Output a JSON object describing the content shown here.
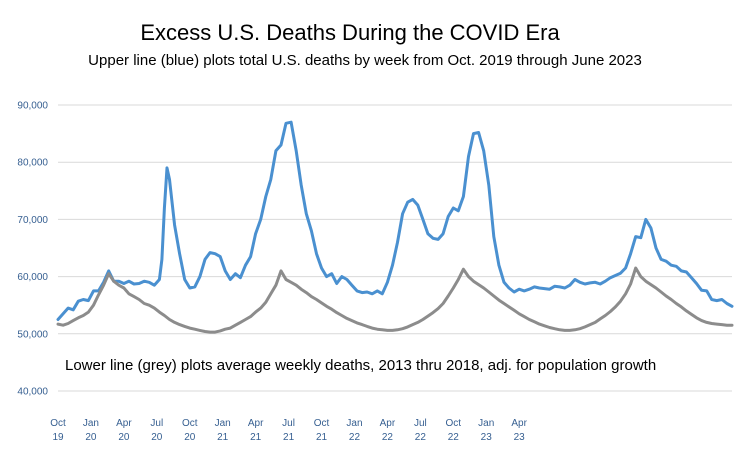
{
  "chart_data": {
    "type": "line",
    "title": "Excess U.S. Deaths During the COVID Era",
    "subtitle": "Upper line (blue) plots total U.S. deaths by week from Oct. 2019 through June 2023",
    "annotation": "Lower line (grey) plots average weekly deaths, 2013 thru 2018, adj. for population growth",
    "ylim": [
      40000,
      90000
    ],
    "y_ticks": [
      {
        "value": 40000,
        "label": "40,000"
      },
      {
        "value": 50000,
        "label": "50,000"
      },
      {
        "value": 60000,
        "label": "60,000"
      },
      {
        "value": 70000,
        "label": "70,000"
      },
      {
        "value": 80000,
        "label": "80,000"
      },
      {
        "value": 90000,
        "label": "90,000"
      }
    ],
    "x_ticks": [
      {
        "week": 0,
        "month": "Oct",
        "year": "19"
      },
      {
        "week": 13,
        "month": "Jan",
        "year": "20"
      },
      {
        "week": 26,
        "month": "Apr",
        "year": "20"
      },
      {
        "week": 39,
        "month": "Jul",
        "year": "20"
      },
      {
        "week": 52,
        "month": "Oct",
        "year": "20"
      },
      {
        "week": 65,
        "month": "Jan",
        "year": "21"
      },
      {
        "week": 78,
        "month": "Apr",
        "year": "21"
      },
      {
        "week": 91,
        "month": "Jul",
        "year": "21"
      },
      {
        "week": 104,
        "month": "Oct",
        "year": "21"
      },
      {
        "week": 117,
        "month": "Jan",
        "year": "22"
      },
      {
        "week": 130,
        "month": "Apr",
        "year": "22"
      },
      {
        "week": 143,
        "month": "Jul",
        "year": "22"
      },
      {
        "week": 156,
        "month": "Oct",
        "year": "22"
      },
      {
        "week": 169,
        "month": "Jan",
        "year": "23"
      },
      {
        "week": 182,
        "month": "Apr",
        "year": "23"
      }
    ],
    "grid": true,
    "series": [
      {
        "color": "#4a90d0",
        "points": [
          [
            0,
            52500
          ],
          [
            2,
            53500
          ],
          [
            4,
            54500
          ],
          [
            6,
            54200
          ],
          [
            8,
            55700
          ],
          [
            10,
            56000
          ],
          [
            12,
            55800
          ],
          [
            14,
            57500
          ],
          [
            16,
            57500
          ],
          [
            18,
            59000
          ],
          [
            20,
            61000
          ],
          [
            22,
            59200
          ],
          [
            24,
            59200
          ],
          [
            26,
            58800
          ],
          [
            28,
            59200
          ],
          [
            30,
            58700
          ],
          [
            32,
            58800
          ],
          [
            34,
            59200
          ],
          [
            36,
            59000
          ],
          [
            38,
            58500
          ],
          [
            40,
            59500
          ],
          [
            41,
            63000
          ],
          [
            42,
            72000
          ],
          [
            43,
            79000
          ],
          [
            44,
            77000
          ],
          [
            46,
            69000
          ],
          [
            48,
            64000
          ],
          [
            50,
            59500
          ],
          [
            52,
            58000
          ],
          [
            54,
            58200
          ],
          [
            56,
            60000
          ],
          [
            58,
            63000
          ],
          [
            60,
            64200
          ],
          [
            62,
            64000
          ],
          [
            64,
            63500
          ],
          [
            66,
            61000
          ],
          [
            68,
            59500
          ],
          [
            70,
            60500
          ],
          [
            72,
            59800
          ],
          [
            74,
            62000
          ],
          [
            76,
            63500
          ],
          [
            78,
            67500
          ],
          [
            80,
            70000
          ],
          [
            82,
            74000
          ],
          [
            84,
            77000
          ],
          [
            86,
            82000
          ],
          [
            88,
            83000
          ],
          [
            90,
            86800
          ],
          [
            92,
            87000
          ],
          [
            94,
            82000
          ],
          [
            96,
            76000
          ],
          [
            98,
            71000
          ],
          [
            100,
            68000
          ],
          [
            102,
            64000
          ],
          [
            104,
            61500
          ],
          [
            106,
            60000
          ],
          [
            108,
            60500
          ],
          [
            110,
            58800
          ],
          [
            112,
            60000
          ],
          [
            114,
            59500
          ],
          [
            116,
            58500
          ],
          [
            118,
            57500
          ],
          [
            120,
            57200
          ],
          [
            122,
            57300
          ],
          [
            124,
            57000
          ],
          [
            126,
            57500
          ],
          [
            128,
            57000
          ],
          [
            130,
            59000
          ],
          [
            132,
            62000
          ],
          [
            134,
            66000
          ],
          [
            136,
            71000
          ],
          [
            138,
            73000
          ],
          [
            140,
            73500
          ],
          [
            142,
            72500
          ],
          [
            144,
            70000
          ],
          [
            146,
            67500
          ],
          [
            148,
            66700
          ],
          [
            150,
            66500
          ],
          [
            152,
            67500
          ],
          [
            154,
            70500
          ],
          [
            156,
            72000
          ],
          [
            158,
            71500
          ],
          [
            160,
            74000
          ],
          [
            162,
            81000
          ],
          [
            164,
            85000
          ],
          [
            166,
            85200
          ],
          [
            168,
            82000
          ],
          [
            170,
            76000
          ],
          [
            172,
            67000
          ],
          [
            174,
            62000
          ],
          [
            176,
            59000
          ],
          [
            178,
            58000
          ],
          [
            180,
            57300
          ],
          [
            182,
            57800
          ],
          [
            184,
            57500
          ],
          [
            186,
            57800
          ],
          [
            188,
            58200
          ],
          [
            190,
            58000
          ],
          [
            192,
            57900
          ],
          [
            194,
            57800
          ],
          [
            196,
            58300
          ],
          [
            198,
            58200
          ],
          [
            200,
            58000
          ],
          [
            202,
            58500
          ],
          [
            204,
            59500
          ],
          [
            206,
            59000
          ],
          [
            208,
            58700
          ],
          [
            210,
            58900
          ],
          [
            212,
            59000
          ],
          [
            214,
            58700
          ],
          [
            216,
            59200
          ],
          [
            218,
            59800
          ],
          [
            220,
            60200
          ],
          [
            222,
            60600
          ],
          [
            224,
            61500
          ],
          [
            226,
            64000
          ],
          [
            228,
            67000
          ],
          [
            230,
            66800
          ],
          [
            232,
            70000
          ],
          [
            234,
            68500
          ],
          [
            236,
            65000
          ],
          [
            238,
            63000
          ],
          [
            240,
            62700
          ],
          [
            242,
            62000
          ],
          [
            244,
            61800
          ],
          [
            246,
            61000
          ],
          [
            248,
            60800
          ],
          [
            250,
            59800
          ],
          [
            252,
            58800
          ],
          [
            254,
            57600
          ],
          [
            256,
            57500
          ],
          [
            258,
            56000
          ],
          [
            260,
            55800
          ],
          [
            262,
            56000
          ],
          [
            264,
            55300
          ],
          [
            266,
            54800
          ]
        ]
      },
      {
        "color": "#8c8c8c",
        "points": [
          [
            0,
            51700
          ],
          [
            2,
            51500
          ],
          [
            4,
            51800
          ],
          [
            6,
            52300
          ],
          [
            8,
            52800
          ],
          [
            10,
            53200
          ],
          [
            12,
            53800
          ],
          [
            14,
            55000
          ],
          [
            16,
            56800
          ],
          [
            18,
            58500
          ],
          [
            20,
            60500
          ],
          [
            22,
            59200
          ],
          [
            24,
            58500
          ],
          [
            26,
            58000
          ],
          [
            28,
            57000
          ],
          [
            30,
            56500
          ],
          [
            32,
            56000
          ],
          [
            34,
            55300
          ],
          [
            36,
            55000
          ],
          [
            38,
            54500
          ],
          [
            40,
            53800
          ],
          [
            42,
            53200
          ],
          [
            44,
            52500
          ],
          [
            46,
            52000
          ],
          [
            48,
            51600
          ],
          [
            50,
            51300
          ],
          [
            52,
            51000
          ],
          [
            54,
            50800
          ],
          [
            56,
            50600
          ],
          [
            58,
            50400
          ],
          [
            60,
            50300
          ],
          [
            62,
            50300
          ],
          [
            64,
            50500
          ],
          [
            66,
            50800
          ],
          [
            68,
            51000
          ],
          [
            70,
            51500
          ],
          [
            72,
            52000
          ],
          [
            74,
            52500
          ],
          [
            76,
            53000
          ],
          [
            78,
            53800
          ],
          [
            80,
            54500
          ],
          [
            82,
            55500
          ],
          [
            84,
            57000
          ],
          [
            86,
            58500
          ],
          [
            88,
            61000
          ],
          [
            90,
            59500
          ],
          [
            92,
            59000
          ],
          [
            94,
            58500
          ],
          [
            96,
            57800
          ],
          [
            98,
            57200
          ],
          [
            100,
            56500
          ],
          [
            102,
            56000
          ],
          [
            104,
            55400
          ],
          [
            106,
            54800
          ],
          [
            108,
            54300
          ],
          [
            110,
            53700
          ],
          [
            112,
            53200
          ],
          [
            114,
            52700
          ],
          [
            116,
            52300
          ],
          [
            118,
            51900
          ],
          [
            120,
            51600
          ],
          [
            122,
            51300
          ],
          [
            124,
            51000
          ],
          [
            126,
            50800
          ],
          [
            128,
            50700
          ],
          [
            130,
            50600
          ],
          [
            132,
            50600
          ],
          [
            134,
            50700
          ],
          [
            136,
            50900
          ],
          [
            138,
            51200
          ],
          [
            140,
            51600
          ],
          [
            142,
            52000
          ],
          [
            144,
            52500
          ],
          [
            146,
            53100
          ],
          [
            148,
            53700
          ],
          [
            150,
            54400
          ],
          [
            152,
            55300
          ],
          [
            154,
            56600
          ],
          [
            156,
            58000
          ],
          [
            158,
            59500
          ],
          [
            160,
            61300
          ],
          [
            162,
            60000
          ],
          [
            164,
            59200
          ],
          [
            166,
            58600
          ],
          [
            168,
            58000
          ],
          [
            170,
            57300
          ],
          [
            172,
            56600
          ],
          [
            174,
            55900
          ],
          [
            176,
            55300
          ],
          [
            178,
            54700
          ],
          [
            180,
            54100
          ],
          [
            182,
            53500
          ],
          [
            184,
            53000
          ],
          [
            186,
            52500
          ],
          [
            188,
            52100
          ],
          [
            190,
            51700
          ],
          [
            192,
            51400
          ],
          [
            194,
            51100
          ],
          [
            196,
            50900
          ],
          [
            198,
            50700
          ],
          [
            200,
            50600
          ],
          [
            202,
            50600
          ],
          [
            204,
            50700
          ],
          [
            206,
            50900
          ],
          [
            208,
            51200
          ],
          [
            210,
            51600
          ],
          [
            212,
            52000
          ],
          [
            214,
            52600
          ],
          [
            216,
            53200
          ],
          [
            218,
            53900
          ],
          [
            220,
            54700
          ],
          [
            222,
            55700
          ],
          [
            224,
            57000
          ],
          [
            226,
            58700
          ],
          [
            228,
            61500
          ],
          [
            230,
            60000
          ],
          [
            232,
            59200
          ],
          [
            234,
            58600
          ],
          [
            236,
            58000
          ],
          [
            238,
            57300
          ],
          [
            240,
            56600
          ],
          [
            242,
            56000
          ],
          [
            244,
            55300
          ],
          [
            246,
            54700
          ],
          [
            248,
            54000
          ],
          [
            250,
            53400
          ],
          [
            252,
            52800
          ],
          [
            254,
            52300
          ],
          [
            256,
            52000
          ],
          [
            258,
            51800
          ],
          [
            260,
            51700
          ],
          [
            262,
            51600
          ],
          [
            264,
            51500
          ],
          [
            266,
            51500
          ]
        ]
      }
    ]
  }
}
